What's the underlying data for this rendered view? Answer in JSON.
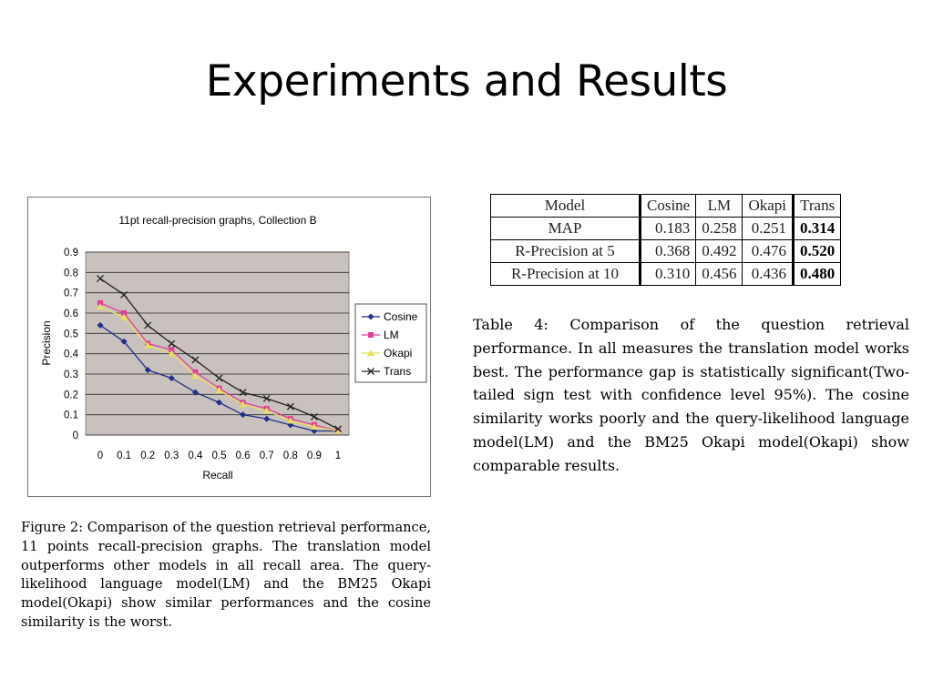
{
  "slide": {
    "title": "Experiments and Results"
  },
  "chart_data": {
    "type": "line",
    "title": "11pt recall-precision graphs, Collection B",
    "xlabel": "Recall",
    "ylabel": "Precision",
    "x": [
      0,
      0.1,
      0.2,
      0.3,
      0.4,
      0.5,
      0.6,
      0.7,
      0.8,
      0.9,
      1
    ],
    "x_tick_labels": [
      "0",
      "0.1",
      "0.2",
      "0.3",
      "0.4",
      "0.5",
      "0.6",
      "0.7",
      "0.8",
      "0.9",
      "1"
    ],
    "y_tick_labels": [
      "0",
      "0.1",
      "0.2",
      "0.3",
      "0.4",
      "0.5",
      "0.6",
      "0.7",
      "0.8",
      "0.9"
    ],
    "ylim": [
      0,
      0.9
    ],
    "grid": true,
    "legend_position": "right",
    "series": [
      {
        "name": "Cosine",
        "color": "#1f2f8c",
        "marker": "diamond",
        "values": [
          0.54,
          0.46,
          0.32,
          0.28,
          0.21,
          0.16,
          0.1,
          0.08,
          0.05,
          0.02,
          0.02
        ]
      },
      {
        "name": "LM",
        "color": "#e0409a",
        "marker": "square",
        "values": [
          0.65,
          0.6,
          0.45,
          0.42,
          0.31,
          0.23,
          0.16,
          0.13,
          0.08,
          0.05,
          0.02
        ]
      },
      {
        "name": "Okapi",
        "color": "#e8e060",
        "marker": "triangle",
        "values": [
          0.63,
          0.58,
          0.44,
          0.4,
          0.29,
          0.22,
          0.15,
          0.12,
          0.07,
          0.04,
          0.02
        ]
      },
      {
        "name": "Trans",
        "color": "#222222",
        "marker": "x",
        "values": [
          0.77,
          0.69,
          0.54,
          0.45,
          0.37,
          0.28,
          0.21,
          0.18,
          0.14,
          0.09,
          0.03
        ]
      }
    ]
  },
  "figure_caption": {
    "label": "Figure 2:",
    "text": "Comparison of the question retrieval performance, 11 points recall-precision graphs. The translation model outperforms other models in all recall area. The query-likelihood language model(LM) and the BM25 Okapi model(Okapi) show similar performances and the cosine similarity is the worst."
  },
  "table": {
    "headers": [
      "Model",
      "Cosine",
      "LM",
      "Okapi",
      "Trans"
    ],
    "rows": [
      {
        "label": "MAP",
        "values": [
          "0.183",
          "0.258",
          "0.251"
        ],
        "best": "0.314"
      },
      {
        "label": "R-Precision at 5",
        "values": [
          "0.368",
          "0.492",
          "0.476"
        ],
        "best": "0.520"
      },
      {
        "label": "R-Precision at 10",
        "values": [
          "0.310",
          "0.456",
          "0.436"
        ],
        "best": "0.480"
      }
    ]
  },
  "table_caption": {
    "label": "Table 4:",
    "text": "Comparison of the question retrieval performance. In all measures the translation model works best. The performance gap is statistically significant(Two-tailed sign test with confidence level 95%). The cosine similarity works poorly and the query-likelihood language model(LM) and the BM25 Okapi model(Okapi) show comparable results."
  }
}
